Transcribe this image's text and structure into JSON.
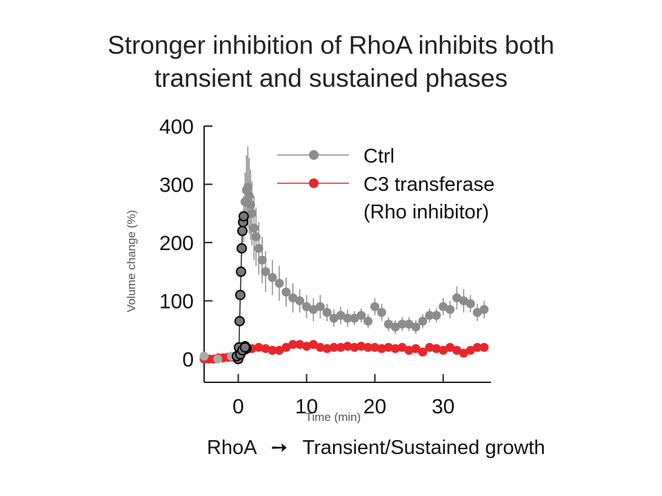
{
  "slide": {
    "title_line1": "Stronger inhibition of RhoA inhibits both",
    "title_line2": "transient and sustained phases",
    "caption_left": "RhoA",
    "caption_arrow_icon": "right-arrow-icon",
    "caption_right": "Transient/Sustained growth"
  },
  "chart_data": {
    "type": "scatter",
    "xlabel": "Time (min)",
    "ylabel": "Volume change (%)",
    "xlim": [
      -5,
      37
    ],
    "ylim": [
      -40,
      400
    ],
    "xticks": [
      0,
      10,
      20,
      30
    ],
    "yticks": [
      0,
      100,
      200,
      300,
      400
    ],
    "legend_position": "top-right",
    "colors": {
      "ctrl": "#8c8c8c",
      "c3": "#e8262a",
      "early": "#aaaaaa"
    },
    "series": [
      {
        "name": "Ctrl",
        "color": "#8c8c8c",
        "x": [
          0.8,
          1.0,
          1.2,
          1.4,
          1.6,
          1.8,
          2.0,
          2.3,
          2.6,
          3.0,
          3.5,
          4.0,
          5.0,
          6.0,
          7.0,
          8.0,
          9.0,
          10.0,
          11.0,
          12.0,
          13.0,
          14.0,
          15.0,
          16.0,
          17.0,
          18.0,
          19.0,
          20.0,
          21.0,
          22.0,
          23.0,
          24.0,
          25.0,
          26.0,
          27.0,
          28.0,
          29.0,
          30.0,
          31.0,
          32.0,
          33.0,
          34.0,
          35.0,
          36.0
        ],
        "y": [
          240,
          270,
          290,
          295,
          280,
          265,
          250,
          225,
          210,
          190,
          170,
          150,
          140,
          130,
          115,
          105,
          100,
          90,
          85,
          90,
          80,
          70,
          75,
          70,
          70,
          75,
          65,
          90,
          80,
          60,
          55,
          60,
          60,
          55,
          65,
          75,
          75,
          90,
          85,
          105,
          100,
          95,
          80,
          85
        ],
        "err": [
          40,
          50,
          60,
          70,
          65,
          60,
          55,
          55,
          50,
          45,
          40,
          35,
          30,
          30,
          25,
          25,
          20,
          20,
          20,
          20,
          15,
          15,
          15,
          15,
          12,
          12,
          12,
          15,
          15,
          12,
          12,
          12,
          12,
          12,
          12,
          12,
          12,
          15,
          15,
          20,
          20,
          15,
          15,
          15
        ]
      },
      {
        "name": "C3 transferase\n(Rho inhibitor)",
        "color": "#e8262a",
        "x": [
          -5.0,
          -4.3,
          -3.6,
          -2.9,
          -2.2,
          -1.5,
          -0.8,
          0.0,
          0.5,
          1.0,
          1.5,
          2.0,
          3.0,
          4.0,
          5.0,
          6.0,
          7.0,
          8.0,
          9.0,
          10.0,
          11.0,
          12.0,
          13.0,
          14.0,
          15.0,
          16.0,
          17.0,
          18.0,
          19.0,
          20.0,
          21.0,
          22.0,
          23.0,
          24.0,
          25.0,
          26.0,
          27.0,
          28.0,
          29.0,
          30.0,
          31.0,
          32.0,
          33.0,
          34.0,
          35.0,
          36.0
        ],
        "y": [
          0,
          0,
          0,
          2,
          2,
          3,
          3,
          5,
          10,
          15,
          18,
          18,
          20,
          18,
          15,
          15,
          20,
          25,
          25,
          22,
          25,
          20,
          18,
          20,
          20,
          22,
          20,
          22,
          20,
          20,
          18,
          20,
          18,
          20,
          15,
          18,
          12,
          20,
          18,
          15,
          20,
          15,
          10,
          15,
          20,
          20
        ]
      },
      {
        "name": "",
        "color": "#aaaaaa",
        "x": [
          -5.0,
          -3.0,
          -1.0
        ],
        "y": [
          5,
          0,
          5
        ]
      },
      {
        "name": "",
        "color": "#000000",
        "x": [
          0.0,
          0.1,
          0.2,
          0.3,
          0.4,
          0.5,
          0.6,
          0.7,
          0.8,
          1.0,
          1.2,
          -0.2,
          0.3,
          0.6,
          1.0
        ],
        "y": [
          0,
          20,
          65,
          110,
          150,
          190,
          220,
          235,
          245,
          22,
          18,
          5,
          8,
          15,
          20
        ]
      }
    ]
  }
}
